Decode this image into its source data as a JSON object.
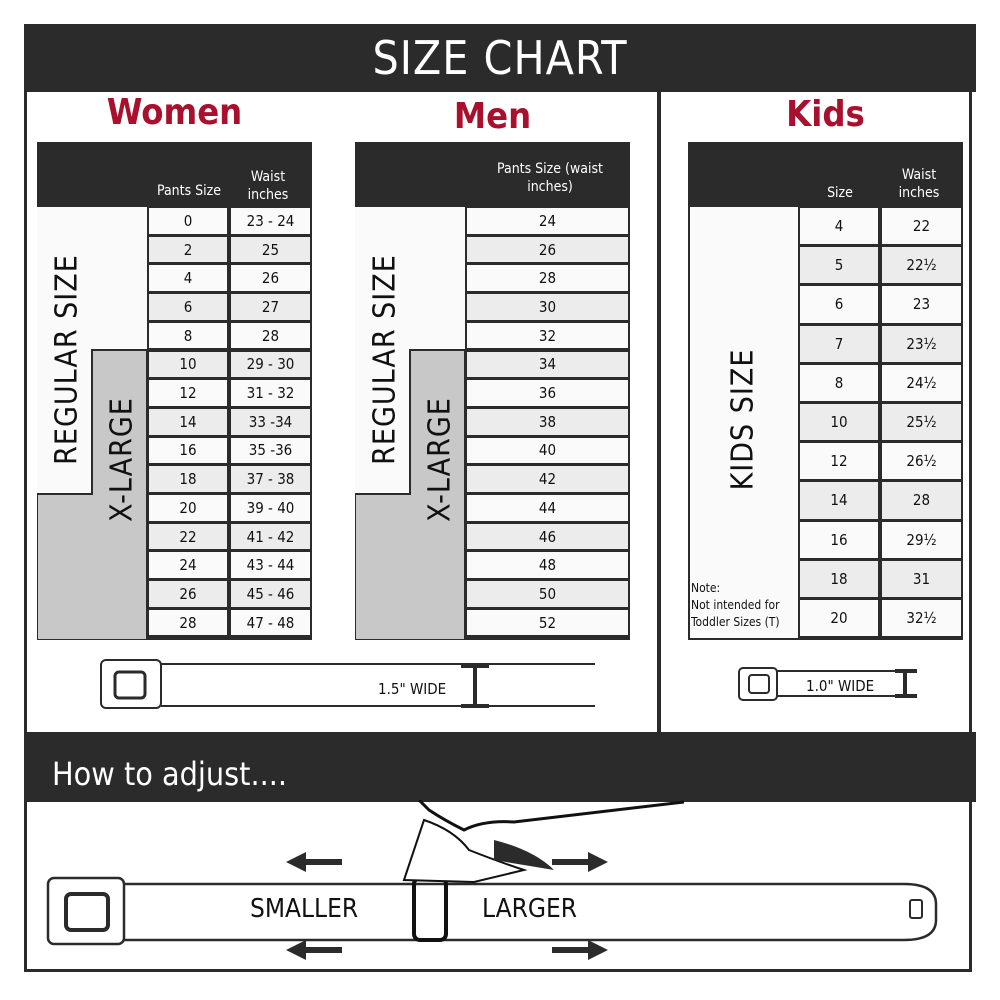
{
  "title": "SIZE CHART",
  "women": {
    "title": "Women",
    "headers": {
      "size": "Pants Size",
      "waist": "Waist inches"
    },
    "regular_label": "REGULAR SIZE",
    "xlarge_label": "X-LARGE",
    "rows": [
      [
        "0",
        "23 - 24"
      ],
      [
        "2",
        "25"
      ],
      [
        "4",
        "26"
      ],
      [
        "6",
        "27"
      ],
      [
        "8",
        "28"
      ],
      [
        "10",
        "29 - 30"
      ],
      [
        "12",
        "31 - 32"
      ],
      [
        "14",
        "33 -34"
      ],
      [
        "16",
        "35 -36"
      ],
      [
        "18",
        "37 - 38"
      ],
      [
        "20",
        "39 - 40"
      ],
      [
        "22",
        "41 - 42"
      ],
      [
        "24",
        "43 - 44"
      ],
      [
        "26",
        "45 - 46"
      ],
      [
        "28",
        "47 - 48"
      ]
    ],
    "belt_label": "1.5\" WIDE"
  },
  "men": {
    "title": "Men",
    "headers": {
      "size": "Pants Size (waist inches)"
    },
    "regular_label": "REGULAR SIZE",
    "xlarge_label": "X-LARGE",
    "rows": [
      "24",
      "26",
      "28",
      "30",
      "32",
      "34",
      "36",
      "38",
      "40",
      "42",
      "44",
      "46",
      "48",
      "50",
      "52"
    ]
  },
  "kids": {
    "title": "Kids",
    "headers": {
      "size": "Size",
      "waist": "Waist inches"
    },
    "label": "KIDS SIZE",
    "note_title": "Note:",
    "note_text": "Not intended for Toddler Sizes (T)",
    "rows": [
      [
        "4",
        "22"
      ],
      [
        "5",
        "22½"
      ],
      [
        "6",
        "23"
      ],
      [
        "7",
        "23½"
      ],
      [
        "8",
        "24½"
      ],
      [
        "10",
        "25½"
      ],
      [
        "12",
        "26½"
      ],
      [
        "14",
        "28"
      ],
      [
        "16",
        "29½"
      ],
      [
        "18",
        "31"
      ],
      [
        "20",
        "32½"
      ]
    ],
    "belt_label": "1.0\" WIDE"
  },
  "adjust": {
    "title": "How to adjust....",
    "smaller": "SMALLER",
    "larger": "LARGER"
  },
  "colors": {
    "dark": "#2b2b2b",
    "accent": "#a8102e",
    "xlarge_fill": "#c8c8c8"
  }
}
